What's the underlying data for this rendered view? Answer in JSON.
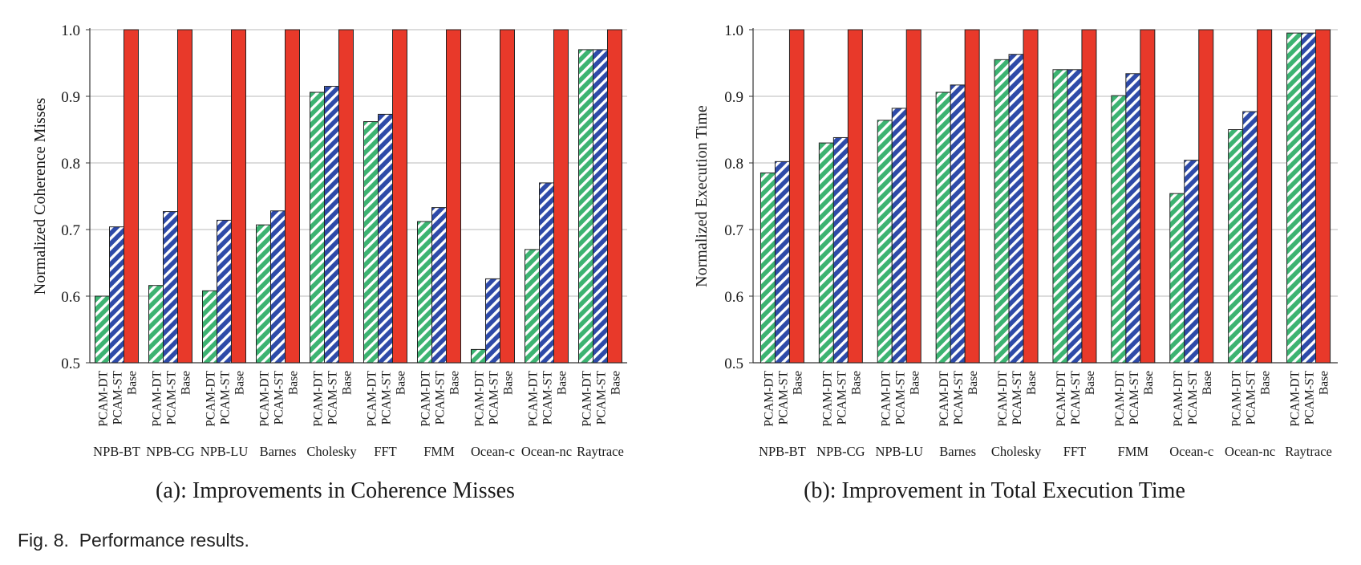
{
  "figure_caption": {
    "number": "Fig. 8.",
    "text": "Performance results."
  },
  "colors": {
    "pcam_dt": "#3cb371",
    "pcam_st": "#2e4aa8",
    "base": "#e8392a",
    "grid": "#b8b8b8"
  },
  "chart_data": [
    {
      "type": "bar",
      "subcaption": "(a): Improvements in Coherence Misses",
      "ylabel": "Normalized Coherence Misses",
      "ylim": [
        0.5,
        1.0
      ],
      "yticks": [
        "0.5",
        "0.6",
        "0.7",
        "0.8",
        "0.9",
        "1.0"
      ],
      "grid": true,
      "categories": [
        "NPB-BT",
        "NPB-CG",
        "NPB-LU",
        "Barnes",
        "Cholesky",
        "FFT",
        "FMM",
        "Ocean-c",
        "Ocean-nc",
        "Raytrace"
      ],
      "series": [
        {
          "name": "PCAM-DT",
          "pattern": "hatched",
          "values": [
            0.6,
            0.616,
            0.608,
            0.707,
            0.906,
            0.862,
            0.712,
            0.52,
            0.67,
            0.97
          ]
        },
        {
          "name": "PCAM-ST",
          "pattern": "hatched",
          "values": [
            0.704,
            0.727,
            0.714,
            0.728,
            0.915,
            0.873,
            0.733,
            0.626,
            0.77,
            0.97
          ]
        },
        {
          "name": "Base",
          "pattern": "solid",
          "values": [
            1.0,
            1.0,
            1.0,
            1.0,
            1.0,
            1.0,
            1.0,
            1.0,
            1.0,
            1.0
          ]
        }
      ]
    },
    {
      "type": "bar",
      "subcaption": "(b): Improvement in Total Execution Time",
      "ylabel": "Normalized Execution Time",
      "ylim": [
        0.5,
        1.0
      ],
      "yticks": [
        "0.5",
        "0.6",
        "0.7",
        "0.8",
        "0.9",
        "1.0"
      ],
      "grid": true,
      "categories": [
        "NPB-BT",
        "NPB-CG",
        "NPB-LU",
        "Barnes",
        "Cholesky",
        "FFT",
        "FMM",
        "Ocean-c",
        "Ocean-nc",
        "Raytrace"
      ],
      "series": [
        {
          "name": "PCAM-DT",
          "pattern": "hatched",
          "values": [
            0.785,
            0.83,
            0.864,
            0.906,
            0.955,
            0.94,
            0.901,
            0.754,
            0.85,
            0.995
          ]
        },
        {
          "name": "PCAM-ST",
          "pattern": "hatched",
          "values": [
            0.802,
            0.838,
            0.882,
            0.917,
            0.963,
            0.94,
            0.934,
            0.804,
            0.877,
            0.995
          ]
        },
        {
          "name": "Base",
          "pattern": "solid",
          "values": [
            1.0,
            1.0,
            1.0,
            1.0,
            1.0,
            1.0,
            1.0,
            1.0,
            1.0,
            1.0
          ]
        }
      ]
    }
  ]
}
